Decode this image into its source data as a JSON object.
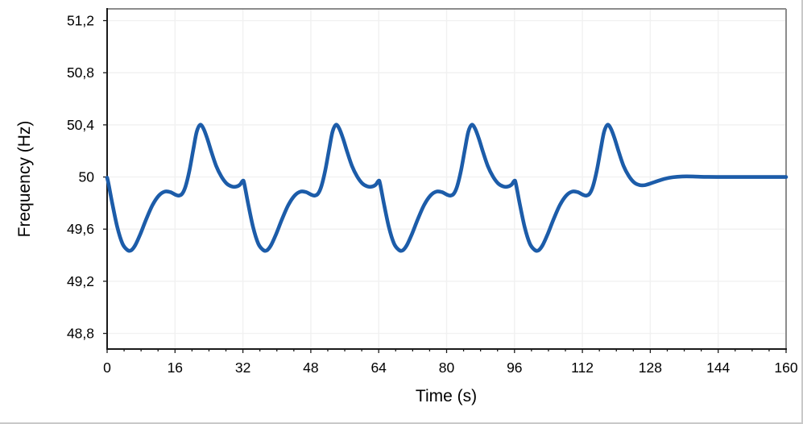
{
  "window": {
    "background": "#ffffff",
    "outer_border_color": "#c9c9c9"
  },
  "chart_data": {
    "type": "line",
    "title": "",
    "xlabel": "Time (s)",
    "ylabel": "Frequency (Hz)",
    "xlim": [
      0,
      160
    ],
    "ylim": [
      48.68,
      51.29
    ],
    "grid": "on",
    "legend": "none",
    "x_minor_step": 4,
    "x_ticks": [
      {
        "v": 0,
        "label": "0"
      },
      {
        "v": 16,
        "label": "16"
      },
      {
        "v": 32,
        "label": "32"
      },
      {
        "v": 48,
        "label": "48"
      },
      {
        "v": 64,
        "label": "64"
      },
      {
        "v": 80,
        "label": "80"
      },
      {
        "v": 96,
        "label": "96"
      },
      {
        "v": 112,
        "label": "112"
      },
      {
        "v": 128,
        "label": "128"
      },
      {
        "v": 144,
        "label": "144"
      },
      {
        "v": 160,
        "label": "160"
      }
    ],
    "y_ticks": [
      {
        "v": 48.8,
        "label": "48,8"
      },
      {
        "v": 49.2,
        "label": "49,2"
      },
      {
        "v": 49.6,
        "label": "49,6"
      },
      {
        "v": 50,
        "label": "50"
      },
      {
        "v": 50.4,
        "label": "50,4"
      },
      {
        "v": 50.8,
        "label": "50,8"
      },
      {
        "v": 51.2,
        "label": "51,2"
      }
    ],
    "colors": {
      "line": "#1c5ca9",
      "axis": "#1a1a1a",
      "box": "#8c8c8c",
      "grid": "#f1f1f1"
    },
    "line_width": 4.6,
    "series": [
      {
        "name": "frequency",
        "points": [
          [
            0,
            49.995
          ],
          [
            0.35,
            49.945
          ],
          [
            1.2,
            49.8
          ],
          [
            2.4,
            49.615
          ],
          [
            3.6,
            49.49
          ],
          [
            4.7,
            49.442
          ],
          [
            5.6,
            49.436
          ],
          [
            6.6,
            49.475
          ],
          [
            7.8,
            49.56
          ],
          [
            9.2,
            49.675
          ],
          [
            10.7,
            49.785
          ],
          [
            12.2,
            49.858
          ],
          [
            13.6,
            49.888
          ],
          [
            14.9,
            49.884
          ],
          [
            16.1,
            49.864
          ],
          [
            16.9,
            49.857
          ],
          [
            17.7,
            49.872
          ],
          [
            18.5,
            49.93
          ],
          [
            19.4,
            50.05
          ],
          [
            20.3,
            50.21
          ],
          [
            21.1,
            50.345
          ],
          [
            21.9,
            50.4
          ],
          [
            22.7,
            50.372
          ],
          [
            23.6,
            50.295
          ],
          [
            24.6,
            50.19
          ],
          [
            25.7,
            50.085
          ],
          [
            26.9,
            50.005
          ],
          [
            28.1,
            49.952
          ],
          [
            29.3,
            49.928
          ],
          [
            30.4,
            49.926
          ],
          [
            31.3,
            49.941
          ],
          [
            32,
            49.972
          ],
          [
            32.35,
            49.945
          ],
          [
            33.2,
            49.8
          ],
          [
            34.4,
            49.615
          ],
          [
            35.6,
            49.49
          ],
          [
            36.7,
            49.442
          ],
          [
            37.6,
            49.436
          ],
          [
            38.6,
            49.475
          ],
          [
            39.8,
            49.56
          ],
          [
            41.2,
            49.675
          ],
          [
            42.7,
            49.785
          ],
          [
            44.2,
            49.858
          ],
          [
            45.6,
            49.888
          ],
          [
            46.9,
            49.884
          ],
          [
            48.1,
            49.864
          ],
          [
            48.9,
            49.857
          ],
          [
            49.7,
            49.872
          ],
          [
            50.5,
            49.93
          ],
          [
            51.4,
            50.05
          ],
          [
            52.3,
            50.21
          ],
          [
            53.1,
            50.345
          ],
          [
            53.9,
            50.4
          ],
          [
            54.7,
            50.372
          ],
          [
            55.6,
            50.295
          ],
          [
            56.6,
            50.19
          ],
          [
            57.7,
            50.085
          ],
          [
            58.9,
            50.005
          ],
          [
            60.1,
            49.952
          ],
          [
            61.3,
            49.928
          ],
          [
            62.4,
            49.926
          ],
          [
            63.3,
            49.941
          ],
          [
            64,
            49.972
          ],
          [
            64.35,
            49.945
          ],
          [
            65.2,
            49.8
          ],
          [
            66.4,
            49.615
          ],
          [
            67.6,
            49.49
          ],
          [
            68.7,
            49.442
          ],
          [
            69.6,
            49.436
          ],
          [
            70.6,
            49.475
          ],
          [
            71.8,
            49.56
          ],
          [
            73.2,
            49.675
          ],
          [
            74.7,
            49.785
          ],
          [
            76.2,
            49.858
          ],
          [
            77.6,
            49.888
          ],
          [
            78.9,
            49.884
          ],
          [
            80.1,
            49.864
          ],
          [
            80.9,
            49.857
          ],
          [
            81.7,
            49.872
          ],
          [
            82.5,
            49.93
          ],
          [
            83.4,
            50.05
          ],
          [
            84.3,
            50.21
          ],
          [
            85.1,
            50.345
          ],
          [
            85.9,
            50.4
          ],
          [
            86.7,
            50.372
          ],
          [
            87.6,
            50.295
          ],
          [
            88.6,
            50.19
          ],
          [
            89.7,
            50.085
          ],
          [
            90.9,
            50.005
          ],
          [
            92.1,
            49.952
          ],
          [
            93.3,
            49.928
          ],
          [
            94.4,
            49.926
          ],
          [
            95.3,
            49.941
          ],
          [
            96,
            49.972
          ],
          [
            96.35,
            49.945
          ],
          [
            97.2,
            49.8
          ],
          [
            98.4,
            49.615
          ],
          [
            99.6,
            49.49
          ],
          [
            100.7,
            49.442
          ],
          [
            101.6,
            49.436
          ],
          [
            102.6,
            49.475
          ],
          [
            103.8,
            49.56
          ],
          [
            105.2,
            49.675
          ],
          [
            106.7,
            49.785
          ],
          [
            108.2,
            49.858
          ],
          [
            109.6,
            49.888
          ],
          [
            110.9,
            49.884
          ],
          [
            112.1,
            49.864
          ],
          [
            112.9,
            49.857
          ],
          [
            113.7,
            49.872
          ],
          [
            114.5,
            49.93
          ],
          [
            115.4,
            50.05
          ],
          [
            116.3,
            50.21
          ],
          [
            117.1,
            50.345
          ],
          [
            117.9,
            50.4
          ],
          [
            118.7,
            50.372
          ],
          [
            119.6,
            50.295
          ],
          [
            120.6,
            50.19
          ],
          [
            121.7,
            50.085
          ],
          [
            122.9,
            50.01
          ],
          [
            124.2,
            49.958
          ],
          [
            125.5,
            49.938
          ],
          [
            126.8,
            49.938
          ],
          [
            128.2,
            49.952
          ],
          [
            129.8,
            49.97
          ],
          [
            131.5,
            49.987
          ],
          [
            133.3,
            49.998
          ],
          [
            135.5,
            50.004
          ],
          [
            138,
            50.004
          ],
          [
            141,
            50.001
          ],
          [
            145,
            50.0
          ],
          [
            152,
            50.0
          ],
          [
            160,
            50.0
          ]
        ]
      }
    ]
  }
}
